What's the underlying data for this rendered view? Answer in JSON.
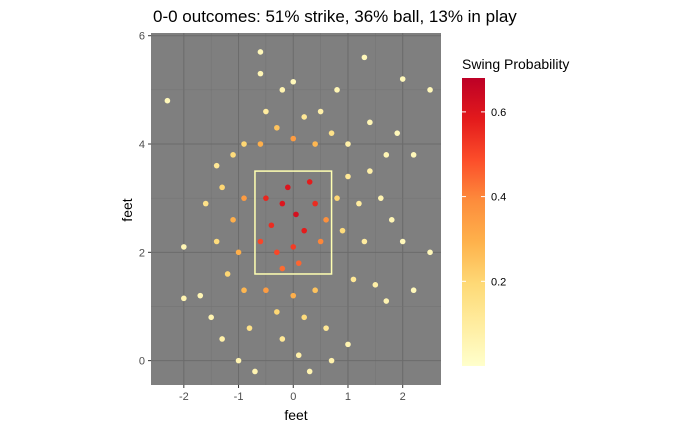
{
  "chart_data": {
    "type": "scatter",
    "title": "0-0 outcomes: 51% strike, 36% ball, 13% in play",
    "xlabel": "feet",
    "ylabel": "feet",
    "xlim": [
      -2.6,
      2.7
    ],
    "ylim": [
      -0.45,
      6.05
    ],
    "x_ticks": [
      -2,
      -1,
      0,
      1,
      2
    ],
    "y_ticks": [
      0,
      2,
      4,
      6
    ],
    "grid": true,
    "panel_background": "#7f7f7f",
    "strike_zone": {
      "x": [
        -0.7,
        0.7
      ],
      "y": [
        1.6,
        3.5
      ],
      "color": "#ffffb2"
    },
    "legend": {
      "title": "Swing Probability",
      "position": "right",
      "ticks": [
        0.2,
        0.4,
        0.6
      ],
      "range": [
        0.0,
        0.68
      ],
      "colors": [
        "#ffffcc",
        "#ffeda0",
        "#fed976",
        "#feb24c",
        "#fd8d3c",
        "#fc4e2a",
        "#e31a1c",
        "#bd0026"
      ]
    },
    "points": [
      {
        "x": 0.05,
        "y": 2.7,
        "p": 0.62
      },
      {
        "x": -0.2,
        "y": 2.9,
        "p": 0.6
      },
      {
        "x": 0.2,
        "y": 2.4,
        "p": 0.58
      },
      {
        "x": -0.4,
        "y": 2.5,
        "p": 0.55
      },
      {
        "x": 0.4,
        "y": 2.9,
        "p": 0.55
      },
      {
        "x": -0.1,
        "y": 3.2,
        "p": 0.6
      },
      {
        "x": 0.3,
        "y": 3.3,
        "p": 0.58
      },
      {
        "x": -0.5,
        "y": 3.0,
        "p": 0.56
      },
      {
        "x": 0.0,
        "y": 2.1,
        "p": 0.52
      },
      {
        "x": -0.3,
        "y": 2.0,
        "p": 0.5
      },
      {
        "x": 0.5,
        "y": 2.2,
        "p": 0.4
      },
      {
        "x": 0.6,
        "y": 2.6,
        "p": 0.38
      },
      {
        "x": -0.6,
        "y": 2.2,
        "p": 0.5
      },
      {
        "x": 0.1,
        "y": 1.8,
        "p": 0.45
      },
      {
        "x": -0.2,
        "y": 1.7,
        "p": 0.44
      },
      {
        "x": 0.8,
        "y": 3.0,
        "p": 0.2
      },
      {
        "x": 1.0,
        "y": 3.4,
        "p": 0.12
      },
      {
        "x": 1.2,
        "y": 2.9,
        "p": 0.1
      },
      {
        "x": 0.9,
        "y": 2.4,
        "p": 0.18
      },
      {
        "x": 1.4,
        "y": 3.5,
        "p": 0.08
      },
      {
        "x": 1.6,
        "y": 3.0,
        "p": 0.06
      },
      {
        "x": 1.3,
        "y": 2.2,
        "p": 0.1
      },
      {
        "x": 1.8,
        "y": 2.6,
        "p": 0.05
      },
      {
        "x": 1.7,
        "y": 3.8,
        "p": 0.05
      },
      {
        "x": 1.9,
        "y": 4.2,
        "p": 0.04
      },
      {
        "x": 2.2,
        "y": 3.8,
        "p": 0.04
      },
      {
        "x": 2.0,
        "y": 2.2,
        "p": 0.04
      },
      {
        "x": 1.1,
        "y": 1.5,
        "p": 0.12
      },
      {
        "x": 1.5,
        "y": 1.4,
        "p": 0.08
      },
      {
        "x": 1.7,
        "y": 1.1,
        "p": 0.06
      },
      {
        "x": -0.9,
        "y": 3.0,
        "p": 0.35
      },
      {
        "x": -1.1,
        "y": 2.6,
        "p": 0.3
      },
      {
        "x": -1.3,
        "y": 3.2,
        "p": 0.2
      },
      {
        "x": -1.0,
        "y": 2.0,
        "p": 0.3
      },
      {
        "x": -1.4,
        "y": 2.2,
        "p": 0.18
      },
      {
        "x": -1.2,
        "y": 1.6,
        "p": 0.2
      },
      {
        "x": -0.9,
        "y": 1.3,
        "p": 0.28
      },
      {
        "x": -0.5,
        "y": 1.3,
        "p": 0.35
      },
      {
        "x": 0.0,
        "y": 1.2,
        "p": 0.3
      },
      {
        "x": 0.4,
        "y": 1.3,
        "p": 0.25
      },
      {
        "x": -0.3,
        "y": 0.9,
        "p": 0.2
      },
      {
        "x": 0.2,
        "y": 0.8,
        "p": 0.18
      },
      {
        "x": -0.8,
        "y": 0.6,
        "p": 0.15
      },
      {
        "x": 0.6,
        "y": 0.6,
        "p": 0.12
      },
      {
        "x": -0.2,
        "y": 0.4,
        "p": 0.12
      },
      {
        "x": 0.1,
        "y": 0.1,
        "p": 0.08
      },
      {
        "x": -1.0,
        "y": 0.0,
        "p": 0.06
      },
      {
        "x": -0.7,
        "y": -0.2,
        "p": 0.06
      },
      {
        "x": 0.3,
        "y": -0.2,
        "p": 0.06
      },
      {
        "x": 1.0,
        "y": 0.3,
        "p": 0.06
      },
      {
        "x": 0.7,
        "y": 0.0,
        "p": 0.07
      },
      {
        "x": -0.6,
        "y": 4.0,
        "p": 0.3
      },
      {
        "x": 0.0,
        "y": 4.1,
        "p": 0.35
      },
      {
        "x": 0.4,
        "y": 4.0,
        "p": 0.28
      },
      {
        "x": -0.3,
        "y": 4.3,
        "p": 0.25
      },
      {
        "x": 0.7,
        "y": 4.2,
        "p": 0.15
      },
      {
        "x": -0.9,
        "y": 4.0,
        "p": 0.2
      },
      {
        "x": 0.2,
        "y": 4.5,
        "p": 0.12
      },
      {
        "x": -0.5,
        "y": 4.6,
        "p": 0.1
      },
      {
        "x": 0.5,
        "y": 4.6,
        "p": 0.08
      },
      {
        "x": -0.2,
        "y": 5.0,
        "p": 0.06
      },
      {
        "x": 0.8,
        "y": 5.0,
        "p": 0.05
      },
      {
        "x": -0.6,
        "y": 5.3,
        "p": 0.05
      },
      {
        "x": -0.6,
        "y": 5.7,
        "p": 0.04
      },
      {
        "x": 1.3,
        "y": 5.6,
        "p": 0.04
      },
      {
        "x": 0.0,
        "y": 5.15,
        "p": 0.04
      },
      {
        "x": -2.3,
        "y": 4.8,
        "p": 0.04
      },
      {
        "x": 2.5,
        "y": 5.0,
        "p": 0.04
      },
      {
        "x": 2.0,
        "y": 5.2,
        "p": 0.04
      },
      {
        "x": -2.0,
        "y": 2.1,
        "p": 0.05
      },
      {
        "x": -2.0,
        "y": 1.15,
        "p": 0.06
      },
      {
        "x": -1.7,
        "y": 1.2,
        "p": 0.05
      },
      {
        "x": -1.5,
        "y": 0.8,
        "p": 0.06
      },
      {
        "x": 2.5,
        "y": 2.0,
        "p": 0.04
      },
      {
        "x": 2.2,
        "y": 1.3,
        "p": 0.04
      },
      {
        "x": -1.4,
        "y": 3.6,
        "p": 0.12
      },
      {
        "x": -1.1,
        "y": 3.8,
        "p": 0.18
      },
      {
        "x": 1.0,
        "y": 4.0,
        "p": 0.08
      },
      {
        "x": 1.4,
        "y": 4.4,
        "p": 0.05
      },
      {
        "x": -1.6,
        "y": 2.9,
        "p": 0.15
      },
      {
        "x": -1.3,
        "y": 0.4,
        "p": 0.08
      }
    ]
  }
}
